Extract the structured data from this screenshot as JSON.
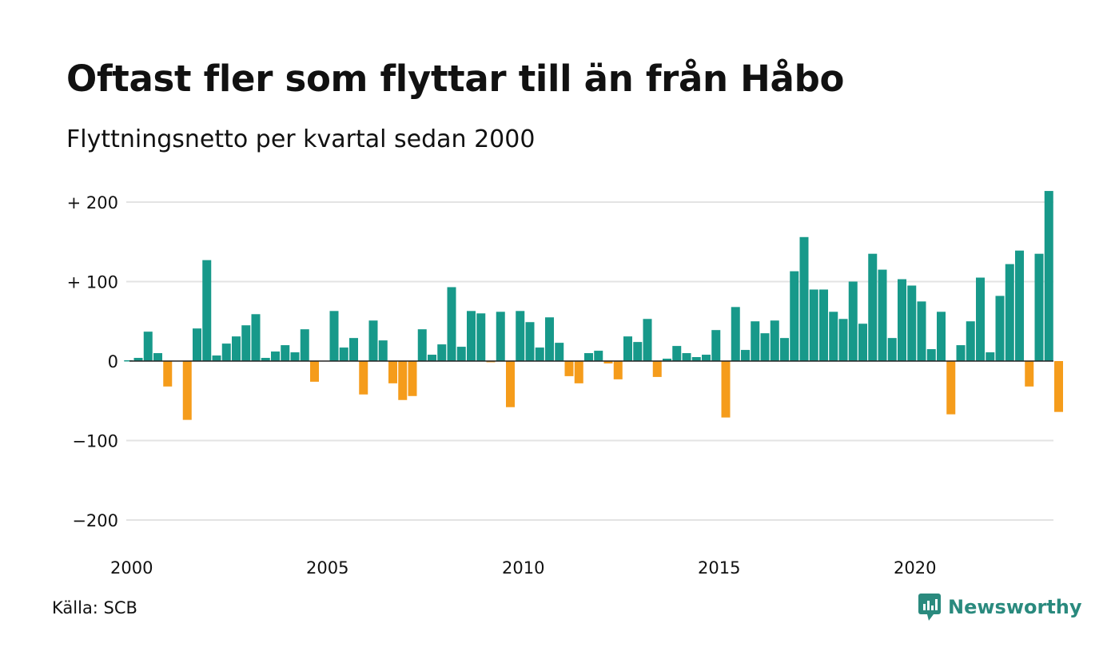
{
  "title": "Oftast fler som flyttar till än från Håbo",
  "subtitle": "Flyttningsnetto per kvartal sedan 2000",
  "source": "Källa: SCB",
  "logo_text": "Newsworthy",
  "colors": {
    "positive": "#17998a",
    "negative": "#f59c1b",
    "grid": "#e3e3e3",
    "zero": "#222222"
  },
  "chart_data": {
    "type": "bar",
    "x_start": "2000 Q1",
    "x_ticks": [
      "2000",
      "2005",
      "2010",
      "2015",
      "2020"
    ],
    "y_ticks": [
      200,
      100,
      0,
      -100,
      -200
    ],
    "y_tick_labels": [
      "+ 200",
      "+ 100",
      "0",
      "−100",
      "−200"
    ],
    "ylim": [
      -225,
      215
    ],
    "values": [
      1,
      4,
      37,
      10,
      -32,
      0,
      -74,
      41,
      127,
      7,
      22,
      31,
      45,
      59,
      4,
      12,
      20,
      11,
      40,
      -26,
      0,
      63,
      17,
      29,
      -42,
      51,
      26,
      -28,
      -49,
      -44,
      40,
      8,
      21,
      93,
      18,
      63,
      60,
      -1,
      62,
      -58,
      63,
      49,
      17,
      55,
      23,
      -19,
      -28,
      10,
      13,
      -3,
      -23,
      31,
      24,
      53,
      -20,
      3,
      19,
      10,
      5,
      8,
      39,
      -71,
      68,
      14,
      50,
      35,
      51,
      29,
      113,
      156,
      90,
      90,
      62,
      53,
      100,
      47,
      135,
      115,
      29,
      103,
      95,
      75,
      15,
      62,
      -67,
      20,
      50,
      105,
      11,
      82,
      122,
      139,
      -32,
      135,
      214,
      -64
    ]
  }
}
